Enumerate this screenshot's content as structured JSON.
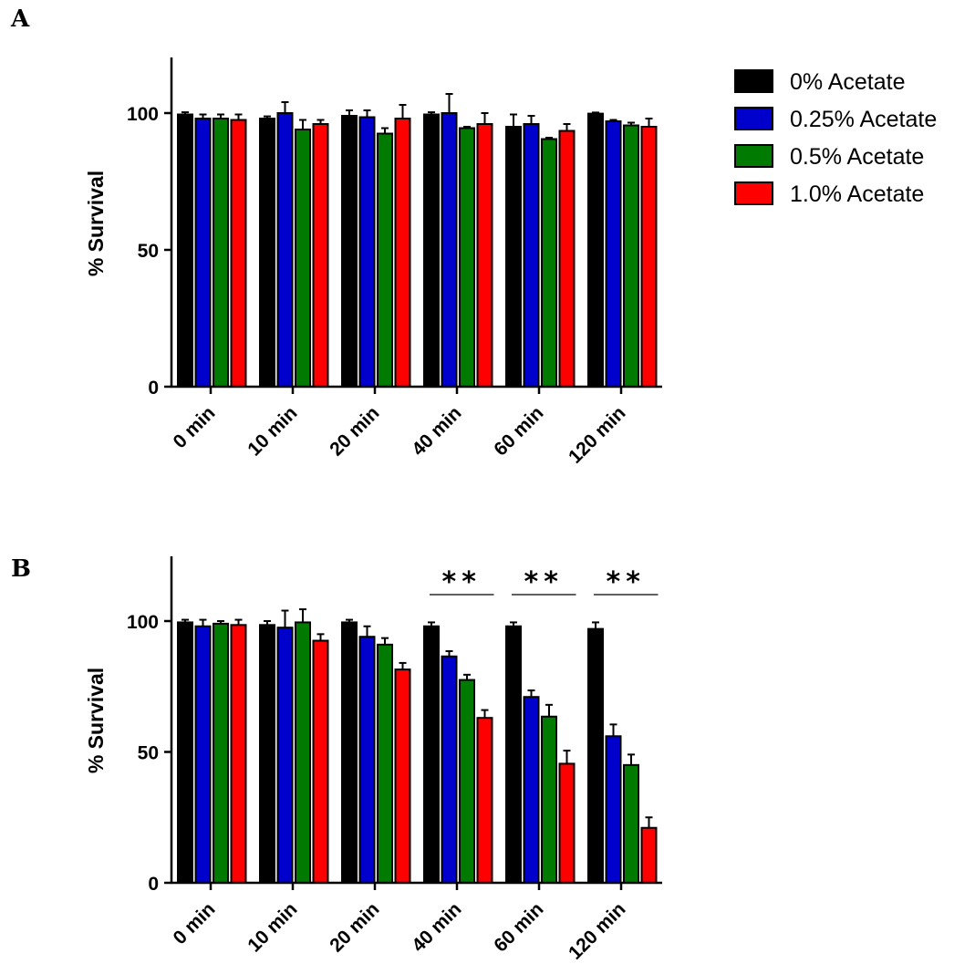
{
  "chart_data": [
    {
      "panel": "A",
      "type": "bar",
      "ylabel": "% Survival",
      "xlabel": "",
      "ylim": [
        0,
        120
      ],
      "yticks": [
        0,
        50,
        100
      ],
      "categories": [
        "0 min",
        "10 min",
        "20 min",
        "40 min",
        "60 min",
        "120 min"
      ],
      "series": [
        {
          "name": "0% Acetate",
          "color": "#000000",
          "values": [
            99.5,
            98,
            99,
            99.5,
            95,
            99.8
          ],
          "errors": [
            0.8,
            0.8,
            2,
            0.8,
            4.5,
            0.4
          ]
        },
        {
          "name": "0.25% Acetate",
          "color": "#0000cc",
          "values": [
            98,
            100,
            98.5,
            100,
            96,
            97
          ],
          "errors": [
            1.5,
            4,
            2.5,
            7,
            3,
            0.5
          ]
        },
        {
          "name": "0.5% Acetate",
          "color": "#007a00",
          "values": [
            98,
            94,
            92.5,
            94.5,
            90.5,
            95.5
          ],
          "errors": [
            1.5,
            3.5,
            2,
            0.5,
            0.5,
            1
          ]
        },
        {
          "name": "1.0% Acetate",
          "color": "#ff0000",
          "values": [
            97.5,
            96,
            98,
            96,
            93.5,
            95
          ],
          "errors": [
            2,
            1.5,
            5,
            4,
            2.5,
            3
          ]
        }
      ],
      "significance": []
    },
    {
      "panel": "B",
      "type": "bar",
      "ylabel": "% Survival",
      "xlabel": "",
      "ylim": [
        0,
        125
      ],
      "yticks": [
        0,
        50,
        100
      ],
      "categories": [
        "0 min",
        "10 min",
        "20 min",
        "40 min",
        "60 min",
        "120 min"
      ],
      "series": [
        {
          "name": "0% Acetate",
          "color": "#000000",
          "values": [
            99.5,
            98.5,
            99.5,
            98,
            98,
            97
          ],
          "errors": [
            1,
            1.5,
            1,
            1.5,
            1.5,
            2.5
          ]
        },
        {
          "name": "0.25% Acetate",
          "color": "#0000cc",
          "values": [
            98,
            97.5,
            94,
            86.5,
            71,
            56
          ],
          "errors": [
            2.5,
            6.5,
            4,
            2,
            2.5,
            4.5
          ]
        },
        {
          "name": "0.5% Acetate",
          "color": "#007a00",
          "values": [
            99,
            99.5,
            91,
            77.5,
            63.5,
            45
          ],
          "errors": [
            1,
            5,
            2.5,
            2,
            4.5,
            4
          ]
        },
        {
          "name": "1.0% Acetate",
          "color": "#ff0000",
          "values": [
            98.5,
            92.5,
            81.5,
            63,
            45.5,
            21
          ],
          "errors": [
            2,
            2.5,
            2.5,
            3,
            5,
            4
          ]
        }
      ],
      "significance": [
        {
          "category": "40 min",
          "label": "**"
        },
        {
          "category": "60 min",
          "label": "**"
        },
        {
          "category": "120 min",
          "label": "**"
        }
      ]
    }
  ],
  "legend": {
    "placement": "top-right",
    "items": [
      {
        "label": "0% Acetate",
        "color": "#000000"
      },
      {
        "label": "0.25% Acetate",
        "color": "#0000cc"
      },
      {
        "label": "0.5% Acetate",
        "color": "#007a00"
      },
      {
        "label": "1.0% Acetate",
        "color": "#ff0000"
      }
    ]
  }
}
